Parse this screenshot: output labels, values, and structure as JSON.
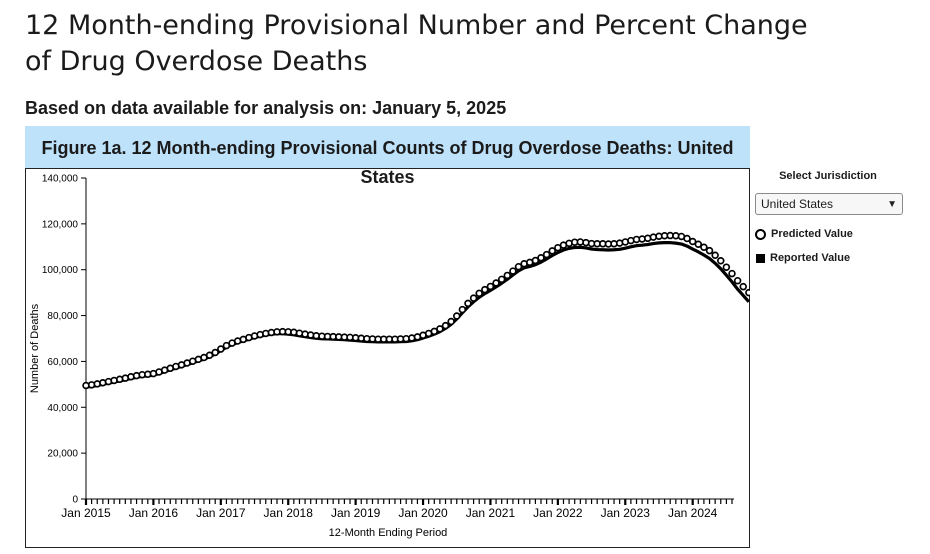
{
  "page": {
    "title_line1": "12 Month-ending Provisional Number and Percent Change",
    "title_line2": "of Drug Overdose Deaths",
    "subtitle": "Based on data available for analysis on: January 5, 2025"
  },
  "jurisdiction": {
    "label": "Select Jurisdiction",
    "selected": "United States"
  },
  "legend": {
    "predicted": "Predicted Value",
    "reported": "Reported Value"
  },
  "chart_data": {
    "type": "line",
    "title_line1": "Figure 1a. 12 Month-ending Provisional Counts of Drug Overdose Deaths: United",
    "title_line2": "States",
    "xlabel": "12-Month Ending Period",
    "ylabel": "Number of Deaths",
    "ylim": [
      0,
      140000
    ],
    "yticks": [
      0,
      20000,
      40000,
      60000,
      80000,
      100000,
      120000,
      140000
    ],
    "ytick_labels": [
      "0",
      "20,000",
      "40,000",
      "60,000",
      "80,000",
      "100,000",
      "120,000",
      "140,000"
    ],
    "xtick_labels": [
      "Jan 2015",
      "Jan 2016",
      "Jan 2017",
      "Jan 2018",
      "Jan 2019",
      "Jan 2020",
      "Jan 2021",
      "Jan 2022",
      "Jan 2023",
      "Jan 2024"
    ],
    "x_start": "2015-01",
    "x_end": "2024-08",
    "grid": false,
    "series": [
      {
        "name": "Predicted Value",
        "marker": "open-circle",
        "values": [
          49500,
          49800,
          50200,
          50700,
          51200,
          51700,
          52200,
          52700,
          53300,
          53800,
          54200,
          54400,
          54700,
          55400,
          56200,
          57000,
          57800,
          58500,
          59300,
          60100,
          60900,
          61700,
          62700,
          63900,
          65400,
          66900,
          68000,
          68900,
          69600,
          70400,
          71100,
          71700,
          72200,
          72600,
          72900,
          73000,
          72900,
          72700,
          72300,
          71900,
          71500,
          71200,
          71000,
          70900,
          70800,
          70700,
          70600,
          70500,
          70300,
          70100,
          69900,
          69800,
          69700,
          69700,
          69700,
          69700,
          69800,
          69900,
          70200,
          70700,
          71400,
          72200,
          73100,
          74200,
          75600,
          77400,
          79800,
          82600,
          85300,
          87600,
          89700,
          91300,
          92700,
          94200,
          95800,
          97500,
          99400,
          101300,
          102600,
          103200,
          104000,
          105200,
          106600,
          108200,
          109600,
          110700,
          111500,
          112000,
          112100,
          111800,
          111400,
          111300,
          111300,
          111200,
          111300,
          111600,
          112100,
          112700,
          113200,
          113400,
          113700,
          114200,
          114600,
          114800,
          114900,
          114800,
          114500,
          113600,
          112300,
          111100,
          109800,
          108300,
          106300,
          103900,
          101100,
          98300,
          95200,
          92600,
          90000
        ]
      },
      {
        "name": "Reported Value",
        "marker": "solid-line",
        "values": [
          48800,
          49100,
          49500,
          50000,
          50500,
          51000,
          51500,
          52000,
          52600,
          53100,
          53500,
          53700,
          54000,
          54700,
          55500,
          56300,
          57100,
          57800,
          58600,
          59400,
          60200,
          61000,
          62000,
          63200,
          64700,
          66200,
          67300,
          68200,
          68900,
          69700,
          70400,
          71000,
          71500,
          71900,
          72100,
          72100,
          71900,
          71600,
          71200,
          70800,
          70400,
          70100,
          69900,
          69800,
          69700,
          69600,
          69500,
          69300,
          69100,
          68900,
          68700,
          68600,
          68500,
          68500,
          68500,
          68500,
          68600,
          68700,
          69000,
          69500,
          70200,
          71000,
          71900,
          73000,
          74400,
          76200,
          78500,
          81200,
          83800,
          86000,
          88000,
          89600,
          91000,
          92500,
          94100,
          95800,
          97700,
          99500,
          100800,
          101400,
          102200,
          103300,
          104700,
          106200,
          107500,
          108600,
          109300,
          109700,
          109800,
          109500,
          109000,
          108800,
          108700,
          108600,
          108700,
          108900,
          109400,
          110000,
          110500,
          110700,
          111000,
          111400,
          111700,
          111800,
          111800,
          111600,
          111200,
          110300,
          109000,
          107800,
          106400,
          104900,
          102800,
          100400,
          97600,
          94700,
          91500,
          88800,
          86000
        ]
      }
    ]
  }
}
